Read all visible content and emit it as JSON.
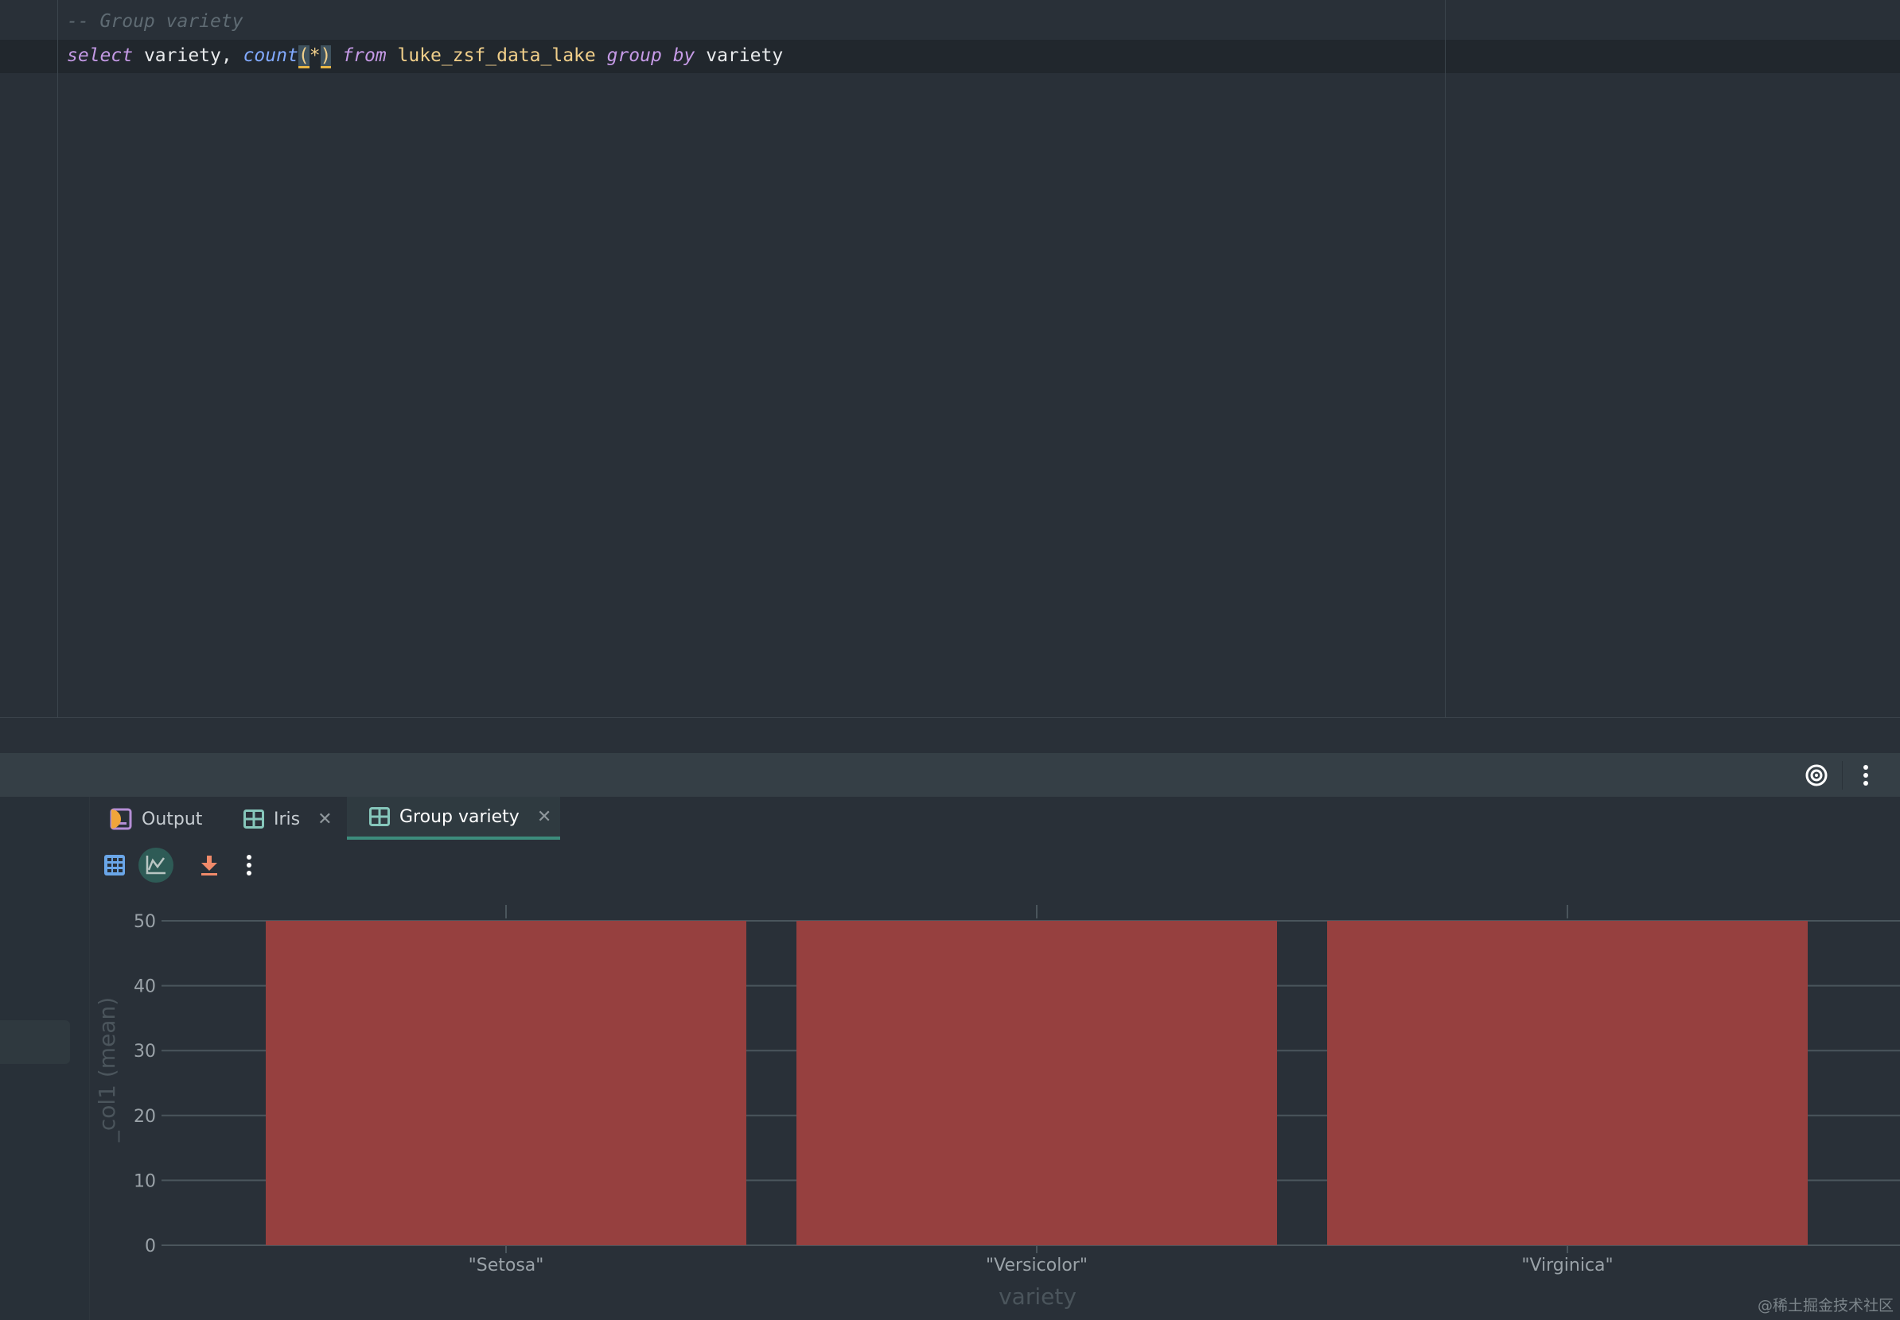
{
  "editor": {
    "line1": "-- Group variety",
    "line2": {
      "kw_select": "select",
      "col": " variety, ",
      "fn_count": "count",
      "open": "(",
      "star": "*",
      "close": ")",
      "kw_from": " from ",
      "table": "luke_zsf_data_lake",
      "kw_group": " group",
      "kw_by": " by",
      "col2": " variety"
    }
  },
  "panel_header": {
    "icons": [
      "target-icon",
      "more-vertical-icon"
    ]
  },
  "tabs": [
    {
      "label": "Output",
      "icon": "output-console-icon",
      "closable": false
    },
    {
      "label": "Iris",
      "icon": "table-icon",
      "closable": true
    },
    {
      "label": "Group variety",
      "icon": "table-icon",
      "closable": true,
      "active": true
    }
  ],
  "close_glyph": "✕",
  "result_toolbar": {
    "icons": [
      "table-view-icon",
      "chart-view-icon",
      "download-icon",
      "more-vertical-icon"
    ],
    "active": "chart-view-icon"
  },
  "chart_data": {
    "type": "bar",
    "categories": [
      "\"Setosa\"",
      "\"Versicolor\"",
      "\"Virginica\""
    ],
    "values": [
      50,
      50,
      50
    ],
    "xlabel": "variety",
    "ylabel": "_col1 (mean)",
    "ylim": [
      0,
      50
    ],
    "yticks": [
      0,
      10,
      20,
      30,
      40,
      50
    ],
    "grid": true,
    "bar_color": "#96403f"
  },
  "watermark": "@稀土掘金技术社区"
}
